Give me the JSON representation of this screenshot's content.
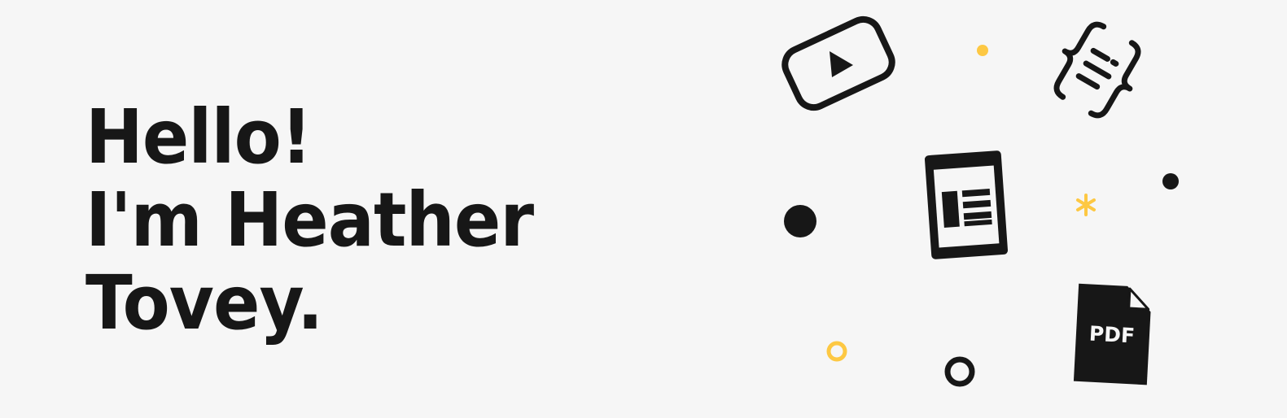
{
  "hero": {
    "line1": "Hello!",
    "line2": "I'm Heather",
    "line3": "Tovey."
  },
  "icons": {
    "video": "video-play-icon",
    "code": "code-braces-icon",
    "document": "article-document-icon",
    "pdf": "pdf-file-icon",
    "pdf_label": "PDF"
  },
  "colors": {
    "background": "#f6f6f6",
    "ink": "#171717",
    "accent": "#fdc843"
  }
}
